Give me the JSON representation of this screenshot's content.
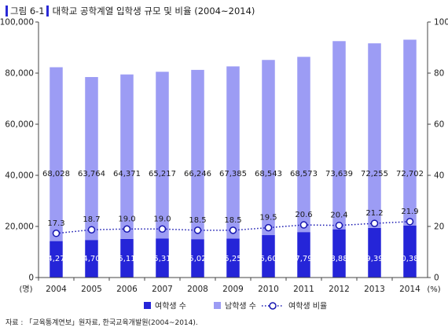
{
  "header": {
    "figure_label": "그림 6-1",
    "title": "대학교 공학계열 입학생 규모 및 비율 (2004~2014)"
  },
  "source": "자료 : 「교육통계연보」원자료, 한국교육개발원(2004~2014).",
  "colors": {
    "female_bar": "#2525d8",
    "male_bar": "#9c9cf4",
    "ratio_line": "#1616b0",
    "title_accent": "#2a2ad6"
  },
  "chart_data": {
    "type": "bar",
    "stacked": true,
    "categories": [
      "2004",
      "2005",
      "2006",
      "2007",
      "2008",
      "2009",
      "2010",
      "2011",
      "2012",
      "2013",
      "2014"
    ],
    "series": [
      {
        "name": "여학생 수",
        "type": "bar",
        "axis": "left",
        "values": [
          14271,
          14704,
          15111,
          15311,
          15020,
          15255,
          16609,
          17795,
          18883,
          19397,
          20383
        ]
      },
      {
        "name": "남학생 수",
        "type": "bar",
        "axis": "left",
        "values": [
          68028,
          63764,
          64371,
          65217,
          66246,
          67385,
          68543,
          68573,
          73639,
          72255,
          72702
        ]
      },
      {
        "name": "여학생 비율",
        "type": "line",
        "axis": "right",
        "values": [
          17.3,
          18.7,
          19.0,
          19.0,
          18.5,
          18.5,
          19.5,
          20.6,
          20.4,
          21.2,
          21.9
        ]
      }
    ],
    "y_left": {
      "unit": "(명)",
      "ylim": [
        0,
        100000
      ],
      "ticks": [
        "0",
        "20,000",
        "40,000",
        "60,000",
        "80,000",
        "100,000"
      ]
    },
    "y_right": {
      "unit": "(%)",
      "ylim": [
        0,
        100
      ],
      "ticks": [
        "0",
        "20",
        "40",
        "60",
        "80",
        "100"
      ]
    },
    "legend_position": "bottom",
    "grid": false
  }
}
